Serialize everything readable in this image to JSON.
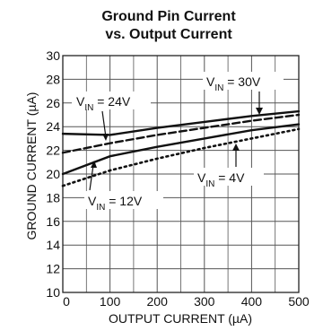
{
  "chart_data": {
    "type": "line",
    "title_line1": "Ground Pin Current",
    "title_line2": "vs. Output Current",
    "xlabel": "OUTPUT CURRENT (µA)",
    "ylabel": "GROUND CURRENT (µA)",
    "xlim": [
      0,
      500
    ],
    "ylim": [
      10,
      30
    ],
    "x_ticks": [
      0,
      100,
      200,
      300,
      400,
      500
    ],
    "y_ticks": [
      10,
      12,
      14,
      16,
      18,
      20,
      22,
      24,
      26,
      28,
      30
    ],
    "grid": true,
    "series": [
      {
        "name": "VIN = 24V",
        "style": "solid",
        "x": [
          0,
          100,
          200,
          300,
          400,
          500
        ],
        "values": [
          23.4,
          23.3,
          23.9,
          24.4,
          24.9,
          25.3
        ]
      },
      {
        "name": "VIN = 30V",
        "style": "dashed",
        "x": [
          0,
          100,
          200,
          300,
          400,
          500
        ],
        "values": [
          21.8,
          22.6,
          23.3,
          23.9,
          24.5,
          25.0
        ]
      },
      {
        "name": "VIN = 12V",
        "style": "solid",
        "x": [
          0,
          100,
          200,
          300,
          400,
          500
        ],
        "values": [
          20.0,
          21.5,
          22.3,
          23.0,
          23.7,
          24.2
        ]
      },
      {
        "name": "VIN = 4V",
        "style": "dotted",
        "x": [
          0,
          100,
          200,
          300,
          400,
          500
        ],
        "values": [
          19.0,
          20.3,
          21.3,
          22.2,
          23.0,
          23.8
        ]
      }
    ],
    "annotations": [
      {
        "main": "V",
        "sub": "IN",
        "rest": " = 24V"
      },
      {
        "main": "V",
        "sub": "IN",
        "rest": " = 30V"
      },
      {
        "main": "V",
        "sub": "IN",
        "rest": " = 12V"
      },
      {
        "main": "V",
        "sub": "IN",
        "rest": " = 4V"
      }
    ]
  }
}
